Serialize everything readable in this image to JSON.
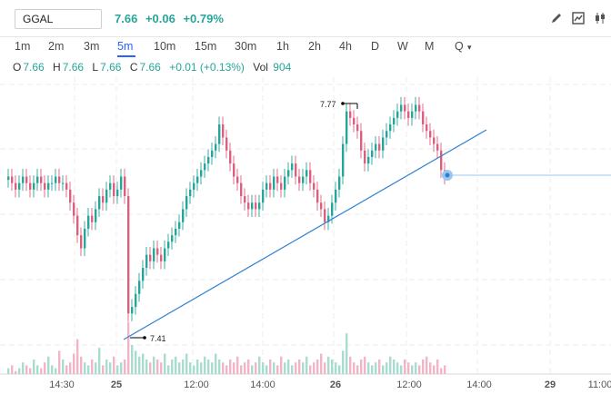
{
  "symbol": {
    "value": "GGAL"
  },
  "quote": {
    "last": "7.66",
    "change": "+0.06",
    "change_pct": "+0.79%",
    "color": "#26a69a"
  },
  "toolbar": {
    "icons": [
      "pencil-icon",
      "line-chart-icon",
      "candlestick-icon"
    ]
  },
  "intervals": [
    {
      "label": "1m",
      "active": false
    },
    {
      "label": "2m",
      "active": false
    },
    {
      "label": "3m",
      "active": false
    },
    {
      "label": "5m",
      "active": true
    },
    {
      "label": "10m",
      "active": false
    },
    {
      "label": "15m",
      "active": false
    },
    {
      "label": "30m",
      "active": false
    },
    {
      "label": "1h",
      "active": false
    },
    {
      "label": "2h",
      "active": false
    },
    {
      "label": "4h",
      "active": false
    },
    {
      "label": "D",
      "active": false
    },
    {
      "label": "W",
      "active": false
    },
    {
      "label": "M",
      "active": false
    },
    {
      "label": "Q",
      "active": false
    }
  ],
  "ohlc": {
    "o_label": "O",
    "o": "7.66",
    "h_label": "H",
    "h": "7.66",
    "l_label": "L",
    "l": "7.66",
    "c_label": "C",
    "c": "7.66",
    "change": "+0.01 (+0.13%)",
    "vol_label": "Vol",
    "vol": "904"
  },
  "colors": {
    "up": "#26a69a",
    "down": "#d9607f",
    "vol_up": "#a8dccf",
    "vol_down": "#f2b5c6",
    "trendline": "#2f7fd1",
    "accent": "#2962ff"
  },
  "chart_data": {
    "type": "candlestick",
    "symbol": "GGAL",
    "interval": "5m",
    "x_ticks": [
      "14:30",
      "25",
      "12:00",
      "14:00",
      "26",
      "12:00",
      "14:00",
      "29",
      "11:00"
    ],
    "high_marker": "7.77",
    "low_marker": "7.41",
    "trendline": {
      "from": 7.41,
      "to": 7.65
    },
    "last_price": 7.66,
    "y_range": [
      7.38,
      7.85
    ],
    "close_series": [
      7.66,
      7.65,
      7.64,
      7.65,
      7.66,
      7.65,
      7.64,
      7.65,
      7.66,
      7.65,
      7.64,
      7.65,
      7.65,
      7.66,
      7.65,
      7.65,
      7.64,
      7.62,
      7.6,
      7.57,
      7.55,
      7.58,
      7.6,
      7.59,
      7.61,
      7.63,
      7.62,
      7.64,
      7.65,
      7.63,
      7.64,
      7.66,
      7.63,
      7.45,
      7.46,
      7.48,
      7.5,
      7.52,
      7.54,
      7.53,
      7.55,
      7.54,
      7.53,
      7.55,
      7.56,
      7.57,
      7.58,
      7.59,
      7.61,
      7.63,
      7.64,
      7.65,
      7.66,
      7.67,
      7.68,
      7.69,
      7.7,
      7.71,
      7.74,
      7.72,
      7.7,
      7.68,
      7.66,
      7.65,
      7.63,
      7.62,
      7.61,
      7.62,
      7.61,
      7.62,
      7.64,
      7.65,
      7.64,
      7.66,
      7.65,
      7.64,
      7.66,
      7.67,
      7.68,
      7.66,
      7.65,
      7.66,
      7.67,
      7.65,
      7.64,
      7.62,
      7.61,
      7.59,
      7.6,
      7.62,
      7.64,
      7.66,
      7.71,
      7.76,
      7.75,
      7.74,
      7.73,
      7.7,
      7.68,
      7.69,
      7.7,
      7.71,
      7.7,
      7.72,
      7.73,
      7.74,
      7.75,
      7.76,
      7.77,
      7.76,
      7.75,
      7.76,
      7.77,
      7.76,
      7.74,
      7.73,
      7.72,
      7.71,
      7.7,
      7.67,
      7.66
    ],
    "volume_series": [
      2,
      3,
      1,
      2,
      4,
      3,
      2,
      5,
      3,
      2,
      4,
      6,
      3,
      2,
      8,
      5,
      3,
      4,
      7,
      12,
      6,
      4,
      3,
      5,
      4,
      9,
      3,
      5,
      4,
      6,
      3,
      4,
      5,
      18,
      10,
      8,
      6,
      7,
      5,
      4,
      6,
      5,
      4,
      7,
      3,
      5,
      6,
      4,
      5,
      7,
      4,
      3,
      5,
      4,
      6,
      5,
      4,
      7,
      5,
      4,
      3,
      5,
      4,
      6,
      3,
      4,
      5,
      3,
      4,
      6,
      4,
      3,
      5,
      4,
      3,
      6,
      4,
      5,
      3,
      4,
      5,
      4,
      6,
      3,
      4,
      5,
      7,
      4,
      6,
      5,
      4,
      3,
      8,
      14,
      6,
      4,
      3,
      5,
      6,
      4,
      3,
      4,
      5,
      3,
      4,
      6,
      5,
      4,
      3,
      5,
      4,
      3,
      4,
      3,
      5,
      6,
      4,
      3,
      5,
      2,
      3
    ]
  }
}
